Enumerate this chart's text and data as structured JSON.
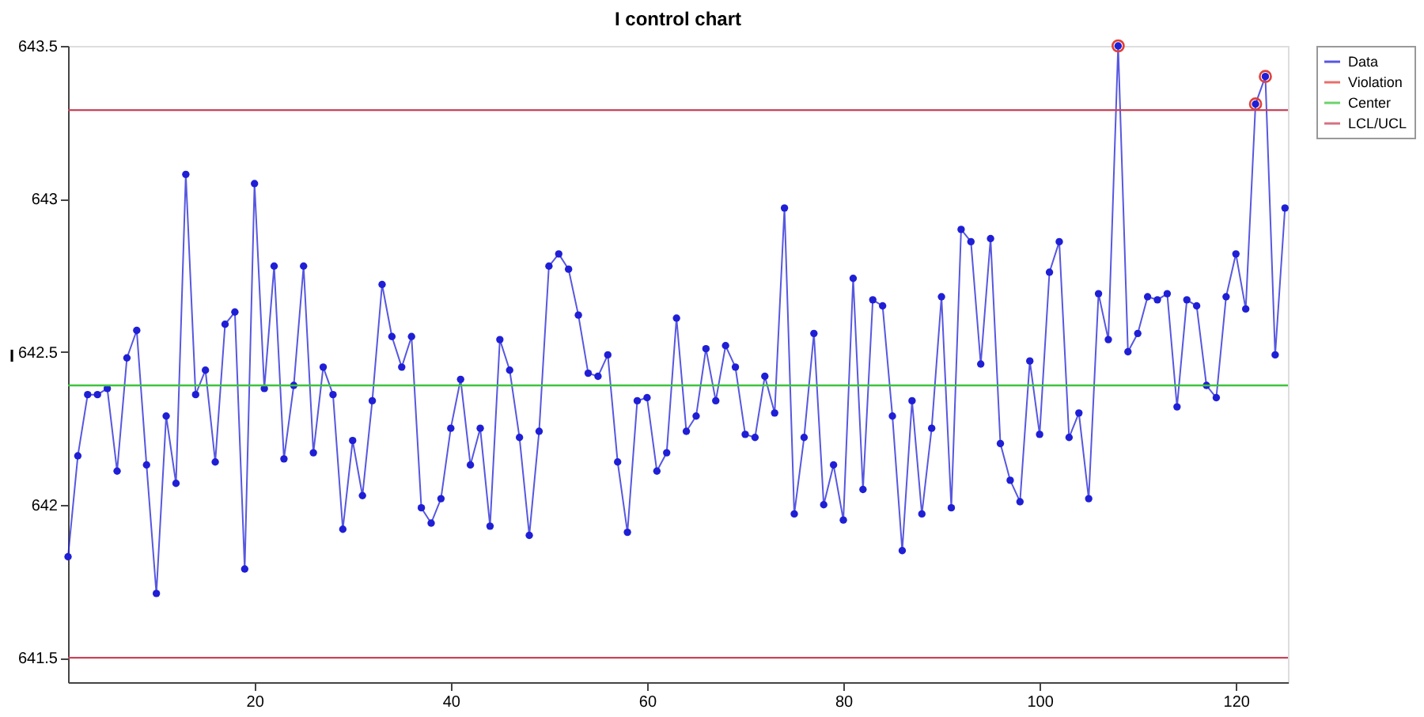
{
  "chart_data": {
    "type": "line",
    "title": "I control chart",
    "ylabel": "I",
    "x": [
      1,
      2,
      3,
      4,
      5,
      6,
      7,
      8,
      9,
      10,
      11,
      12,
      13,
      14,
      15,
      16,
      17,
      18,
      19,
      20,
      21,
      22,
      23,
      24,
      25,
      26,
      27,
      28,
      29,
      30,
      31,
      32,
      33,
      34,
      35,
      36,
      37,
      38,
      39,
      40,
      41,
      42,
      43,
      44,
      45,
      46,
      47,
      48,
      49,
      50,
      51,
      52,
      53,
      54,
      55,
      56,
      57,
      58,
      59,
      60,
      61,
      62,
      63,
      64,
      65,
      66,
      67,
      68,
      69,
      70,
      71,
      72,
      73,
      74,
      75,
      76,
      77,
      78,
      79,
      80,
      81,
      82,
      83,
      84,
      85,
      86,
      87,
      88,
      89,
      90,
      91,
      92,
      93,
      94,
      95,
      96,
      97,
      98,
      99,
      100,
      101,
      102,
      103,
      104,
      105,
      106,
      107,
      108,
      109,
      110,
      111,
      112,
      113,
      114,
      115,
      116,
      117,
      118,
      119,
      120,
      121,
      122,
      123,
      124,
      125
    ],
    "series": [
      {
        "name": "Data",
        "marker": "circle",
        "color": "#1f1fd6",
        "values": [
          641.83,
          642.16,
          642.36,
          642.36,
          642.38,
          642.11,
          642.48,
          642.57,
          642.13,
          641.71,
          642.29,
          642.07,
          643.08,
          642.36,
          642.44,
          642.14,
          642.59,
          642.63,
          641.79,
          643.05,
          642.38,
          642.78,
          642.15,
          642.39,
          642.78,
          642.17,
          642.45,
          642.36,
          641.92,
          642.21,
          642.03,
          642.34,
          642.72,
          642.55,
          642.45,
          642.55,
          641.99,
          641.94,
          642.02,
          642.25,
          642.41,
          642.13,
          642.25,
          641.93,
          642.54,
          642.44,
          642.22,
          641.9,
          642.24,
          642.78,
          642.82,
          642.77,
          642.62,
          642.43,
          642.42,
          642.49,
          642.14,
          641.91,
          642.34,
          642.35,
          642.11,
          642.17,
          642.61,
          642.24,
          642.29,
          642.51,
          642.34,
          642.52,
          642.45,
          642.23,
          642.22,
          642.42,
          642.3,
          642.97,
          641.97,
          642.22,
          642.56,
          642,
          642.13,
          641.95,
          642.74,
          642.05,
          642.67,
          642.65,
          642.29,
          641.85,
          642.34,
          641.97,
          642.25,
          642.68,
          641.99,
          642.9,
          642.86,
          642.46,
          642.87,
          642.2,
          642.08,
          642.01,
          642.47,
          642.23,
          642.76,
          642.86,
          642.22,
          642.3,
          642.02,
          642.69,
          642.54,
          643.5,
          642.5,
          642.56,
          642.68,
          642.67,
          642.69,
          642.32,
          642.67,
          642.65,
          642.39,
          642.35,
          642.68,
          642.82,
          642.64,
          643.31,
          643.4,
          642.49,
          642.97
        ]
      },
      {
        "name": "Violation",
        "type": "scatter",
        "marker": "circle",
        "color": "#e0403a",
        "x": [
          108,
          122,
          123
        ],
        "values": [
          643.5,
          643.31,
          643.4
        ]
      }
    ],
    "ref_lines": [
      {
        "axis": "y",
        "value": 642.39,
        "label": "Center",
        "color": "#3cc43c"
      },
      {
        "axis": "y",
        "value": 643.29,
        "label": "LCL/UCL",
        "color": "#c8445a"
      },
      {
        "axis": "y",
        "value": 641.5,
        "color": "#c8445a"
      }
    ],
    "xlim": [
      1,
      125.3
    ],
    "xticks": [
      20,
      40,
      60,
      80,
      100,
      120
    ],
    "ylim": [
      641.42,
      643.5
    ],
    "yticks": [
      641.5,
      642,
      642.5,
      643,
      643.5
    ],
    "grid": false,
    "legend": "top right"
  }
}
